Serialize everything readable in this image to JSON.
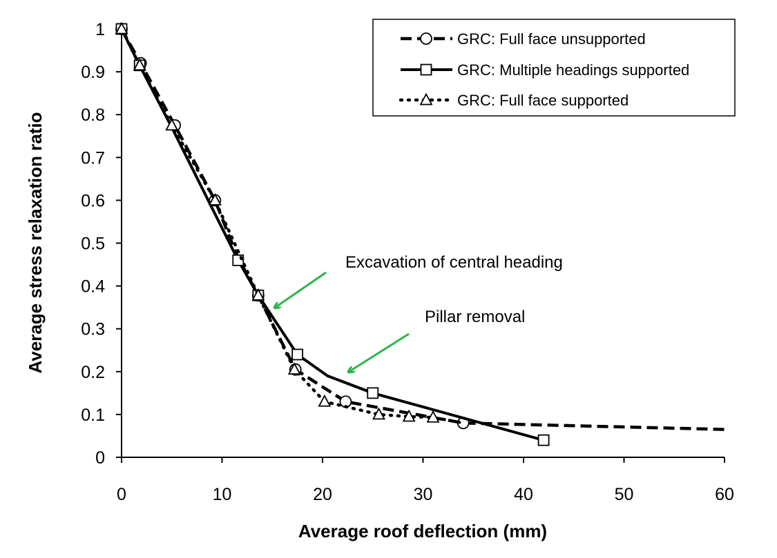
{
  "chart_data": {
    "type": "line",
    "title": "",
    "xlabel": "Average roof deflection (mm)",
    "ylabel": "Average stress relaxation ratio",
    "xlim": [
      0,
      60
    ],
    "ylim": [
      0,
      1
    ],
    "xticks": [
      0,
      10,
      20,
      30,
      40,
      50,
      60
    ],
    "yticks": [
      0,
      0.1,
      0.2,
      0.3,
      0.4,
      0.5,
      0.6,
      0.7,
      0.8,
      0.9,
      1
    ],
    "ytick_labels": [
      "0",
      "0.1",
      "0.2",
      "0.3",
      "0.4",
      "0.5",
      "0.6",
      "0.7",
      "0.8",
      "0.9",
      "1"
    ],
    "grid": false,
    "legend_position": "top-right",
    "series": [
      {
        "name": "GRC: Full face unsupported",
        "line_style": "dashed",
        "marker": "circle",
        "line": [
          [
            0,
            1.0
          ],
          [
            1.9,
            0.92
          ],
          [
            5.3,
            0.775
          ],
          [
            9.3,
            0.6
          ],
          [
            11.5,
            0.47
          ],
          [
            13.6,
            0.378
          ],
          [
            17.3,
            0.205
          ],
          [
            22.3,
            0.13
          ],
          [
            34.0,
            0.08
          ],
          [
            60.0,
            0.065
          ]
        ],
        "markers": [
          [
            0,
            1.0
          ],
          [
            1.9,
            0.92
          ],
          [
            5.3,
            0.775
          ],
          [
            9.3,
            0.6
          ],
          [
            13.6,
            0.378
          ],
          [
            17.3,
            0.205
          ],
          [
            22.3,
            0.13
          ],
          [
            34.0,
            0.08
          ]
        ]
      },
      {
        "name": "GRC: Multiple headings supported",
        "line_style": "solid",
        "marker": "square",
        "line": [
          [
            0,
            1.0
          ],
          [
            1.8,
            0.915
          ],
          [
            5.0,
            0.77
          ],
          [
            11.6,
            0.46
          ],
          [
            13.6,
            0.378
          ],
          [
            17.5,
            0.24
          ],
          [
            20.5,
            0.19
          ],
          [
            25.0,
            0.15
          ],
          [
            42.0,
            0.04
          ]
        ],
        "markers": [
          [
            0,
            1.0
          ],
          [
            1.8,
            0.915
          ],
          [
            11.6,
            0.46
          ],
          [
            13.6,
            0.378
          ],
          [
            17.5,
            0.24
          ],
          [
            25.0,
            0.15
          ],
          [
            42.0,
            0.04
          ]
        ]
      },
      {
        "name": "GRC: Full face supported",
        "line_style": "dotted",
        "marker": "triangle",
        "line": [
          [
            0,
            1.0
          ],
          [
            1.8,
            0.915
          ],
          [
            5.0,
            0.775
          ],
          [
            9.3,
            0.6
          ],
          [
            13.6,
            0.378
          ],
          [
            17.2,
            0.205
          ],
          [
            20.2,
            0.13
          ],
          [
            25.6,
            0.1
          ],
          [
            28.6,
            0.095
          ],
          [
            31.0,
            0.093
          ],
          [
            34.0,
            0.08
          ]
        ],
        "markers": [
          [
            0,
            1.0
          ],
          [
            1.8,
            0.915
          ],
          [
            5.0,
            0.775
          ],
          [
            9.3,
            0.6
          ],
          [
            13.6,
            0.378
          ],
          [
            17.2,
            0.205
          ],
          [
            20.2,
            0.13
          ],
          [
            25.6,
            0.1
          ],
          [
            28.6,
            0.095
          ],
          [
            31.0,
            0.093
          ]
        ]
      }
    ],
    "annotations": [
      {
        "text": "Excavation of central heading",
        "target": [
          15.0,
          0.35
        ],
        "color": "#2db34a"
      },
      {
        "text": "Pillar removal",
        "target": [
          22.5,
          0.2
        ],
        "color": "#2db34a"
      }
    ]
  }
}
